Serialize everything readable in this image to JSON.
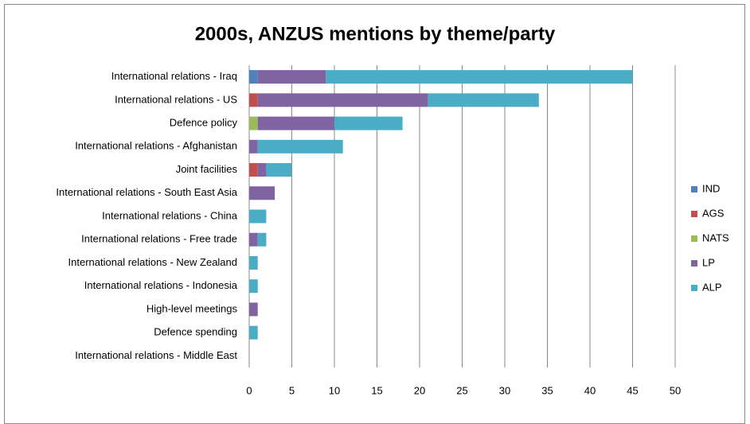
{
  "chart_data": {
    "type": "stacked_bar_horizontal",
    "title": "2000s, ANZUS mentions by theme/party",
    "categories": [
      "International relations - Iraq",
      "International relations - US",
      "Defence policy",
      "International relations - Afghanistan",
      "Joint facilities",
      "International relations - South East Asia",
      "International relations - China",
      "International relations - Free trade",
      "International relations - New Zealand",
      "International relations - Indonesia",
      "High-level meetings",
      "Defence spending",
      "International relations - Middle East"
    ],
    "series": [
      {
        "name": "IND",
        "color": "#4f81bd",
        "values": [
          1,
          0,
          0,
          0,
          0,
          0,
          0,
          0,
          0,
          0,
          0,
          0,
          0
        ]
      },
      {
        "name": "AGS",
        "color": "#c0504d",
        "values": [
          0,
          1,
          0,
          0,
          1,
          0,
          0,
          0,
          0,
          0,
          0,
          0,
          0
        ]
      },
      {
        "name": "NATS",
        "color": "#9bbb59",
        "values": [
          0,
          0,
          1,
          0,
          0,
          0,
          0,
          0,
          0,
          0,
          0,
          0,
          0
        ]
      },
      {
        "name": "LP",
        "color": "#8064a2",
        "values": [
          8,
          20,
          9,
          1,
          1,
          3,
          0,
          1,
          0,
          0,
          1,
          0,
          0
        ]
      },
      {
        "name": "ALP",
        "color": "#4bacc6",
        "values": [
          36,
          13,
          8,
          10,
          3,
          0,
          2,
          1,
          1,
          1,
          0,
          1,
          0
        ]
      }
    ],
    "xlim": [
      0,
      50
    ],
    "xticks": [
      0,
      5,
      10,
      15,
      20,
      25,
      30,
      35,
      40,
      45,
      50
    ],
    "grid": true,
    "legend": "right"
  }
}
